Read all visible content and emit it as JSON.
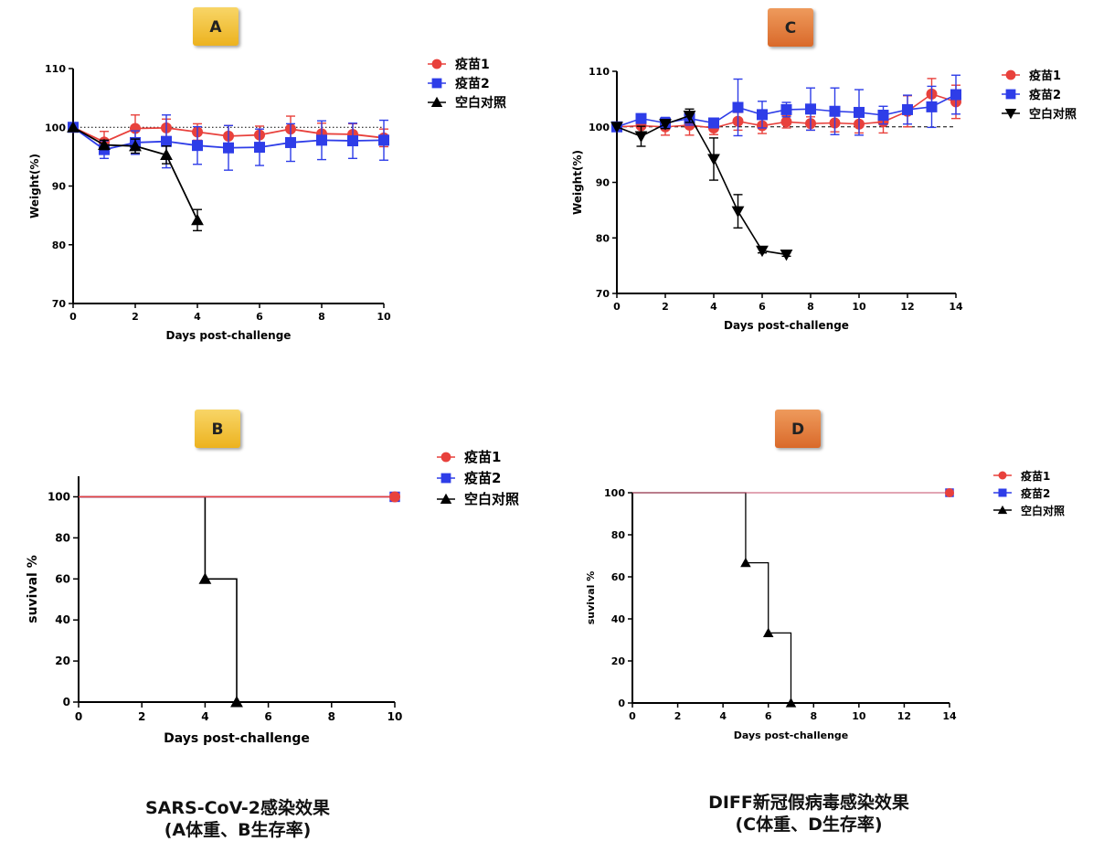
{
  "colors": {
    "vaccine1": "#e8413c",
    "vaccine2": "#2e3de8",
    "control": "#000000",
    "badge_yellow": "#f2c132",
    "badge_orange": "#e07a34"
  },
  "captions": {
    "left_line1": "SARS-CoV-2感染效果",
    "left_line2": "(A体重、B生存率)",
    "right_line1": "DIFF新冠假病毒感染效果",
    "right_line2": "(C体重、D生存率)"
  },
  "chart_data": [
    {
      "id": "A",
      "badge": "A",
      "type": "line",
      "xlabel": "Days post-challenge",
      "ylabel": "Weight(%)",
      "xlim": [
        0,
        10
      ],
      "ylim": [
        70,
        110
      ],
      "xticks": [
        0,
        2,
        4,
        6,
        8,
        10
      ],
      "yticks": [
        70,
        80,
        90,
        100,
        110
      ],
      "reference_line": 100,
      "reference_style": "dotted",
      "legend_position": "top-right",
      "series": [
        {
          "name": "疫苗1",
          "marker": "circle",
          "x": [
            0,
            1,
            2,
            3,
            4,
            5,
            6,
            7,
            8,
            9,
            10
          ],
          "y": [
            100,
            97.5,
            99.8,
            99.9,
            99.2,
            98.5,
            98.7,
            99.7,
            98.9,
            98.8,
            98.2
          ],
          "err": [
            0,
            1.8,
            2.3,
            1.5,
            1.4,
            1.8,
            1.5,
            2.2,
            1.8,
            1.8,
            1.5
          ]
        },
        {
          "name": "疫苗2",
          "marker": "square",
          "x": [
            0,
            1,
            2,
            3,
            4,
            5,
            6,
            7,
            8,
            9,
            10
          ],
          "y": [
            100,
            96.2,
            97.4,
            97.6,
            96.9,
            96.5,
            96.6,
            97.4,
            97.8,
            97.7,
            97.8
          ],
          "err": [
            0,
            1.5,
            2.0,
            4.5,
            3.2,
            3.8,
            3.1,
            3.2,
            3.3,
            3.0,
            3.4
          ]
        },
        {
          "name": "空白对照",
          "marker": "triangle-up",
          "x": [
            0,
            1,
            2,
            3,
            4
          ],
          "y": [
            100,
            97.0,
            96.8,
            95.3,
            84.2
          ],
          "err": [
            0,
            0.8,
            1.2,
            1.5,
            1.8
          ]
        }
      ]
    },
    {
      "id": "B",
      "badge": "B",
      "type": "step",
      "xlabel": "Days post-challenge",
      "ylabel": "suvival %",
      "xlim": [
        0,
        10
      ],
      "ylim": [
        0,
        110
      ],
      "xticks": [
        0,
        2,
        4,
        6,
        8,
        10
      ],
      "yticks": [
        0,
        20,
        40,
        60,
        80,
        100
      ],
      "legend_position": "top-right",
      "series": [
        {
          "name": "疫苗1",
          "marker": "circle",
          "x": [
            0,
            10
          ],
          "y": [
            100,
            100
          ],
          "marker_x": [
            10
          ],
          "marker_y": [
            100
          ]
        },
        {
          "name": "疫苗2",
          "marker": "square",
          "x": [
            0,
            10
          ],
          "y": [
            100,
            100
          ],
          "marker_x": [
            10
          ],
          "marker_y": [
            100
          ]
        },
        {
          "name": "空白对照",
          "marker": "triangle-up",
          "x": [
            0,
            4,
            5
          ],
          "y": [
            100,
            60,
            0
          ],
          "marker_x": [
            4,
            5
          ],
          "marker_y": [
            60,
            0
          ]
        }
      ]
    },
    {
      "id": "C",
      "badge": "C",
      "type": "line",
      "xlabel": "Days post-challenge",
      "ylabel": "Weight(%)",
      "xlim": [
        0,
        14
      ],
      "ylim": [
        70,
        110
      ],
      "xticks": [
        0,
        2,
        4,
        6,
        8,
        10,
        12,
        14
      ],
      "yticks": [
        70,
        80,
        90,
        100,
        110
      ],
      "reference_line": 100,
      "reference_style": "dashed",
      "legend_position": "top-right",
      "series": [
        {
          "name": "疫苗1",
          "marker": "circle",
          "x": [
            0,
            1,
            2,
            3,
            4,
            5,
            6,
            7,
            8,
            9,
            10,
            11,
            12,
            13,
            14
          ],
          "y": [
            100,
            100.2,
            100.0,
            100.3,
            99.8,
            101.0,
            100.2,
            100.9,
            100.6,
            100.7,
            100.5,
            100.9,
            102.8,
            105.9,
            104.5
          ],
          "err": [
            0,
            1.2,
            1.5,
            1.8,
            1.2,
            1.6,
            1.4,
            1.1,
            1.2,
            1.6,
            1.6,
            2.0,
            2.8,
            2.8,
            3.0
          ]
        },
        {
          "name": "疫苗2",
          "marker": "square",
          "x": [
            0,
            1,
            2,
            3,
            4,
            5,
            6,
            7,
            8,
            9,
            10,
            11,
            12,
            13,
            14
          ],
          "y": [
            100,
            101.5,
            100.7,
            101.5,
            100.7,
            103.5,
            102.2,
            103.1,
            103.2,
            102.8,
            102.6,
            102.1,
            103.1,
            103.6,
            105.8
          ],
          "err": [
            0,
            0.6,
            1.0,
            1.2,
            0.8,
            5.1,
            2.4,
            1.3,
            3.8,
            4.2,
            4.1,
            1.6,
            2.6,
            3.7,
            3.5
          ]
        },
        {
          "name": "空白对照",
          "marker": "triangle-down",
          "x": [
            0,
            1,
            2,
            3,
            4,
            5,
            6,
            7
          ],
          "y": [
            100,
            98.3,
            100.5,
            102.0,
            94.2,
            84.8,
            77.7,
            77.0
          ],
          "err": [
            0,
            1.8,
            0.8,
            1.2,
            3.8,
            3.0,
            0.4,
            0.3
          ]
        }
      ]
    },
    {
      "id": "D",
      "badge": "D",
      "type": "step",
      "xlabel": "Days post-challenge",
      "ylabel": "suvival %",
      "xlim": [
        0,
        14
      ],
      "ylim": [
        0,
        100
      ],
      "xticks": [
        0,
        2,
        4,
        6,
        8,
        10,
        12,
        14
      ],
      "yticks": [
        0,
        20,
        40,
        60,
        80,
        100
      ],
      "legend_position": "top-right",
      "series": [
        {
          "name": "疫苗1",
          "marker": "circle",
          "x": [
            0,
            14
          ],
          "y": [
            100,
            100
          ],
          "marker_x": [
            14
          ],
          "marker_y": [
            100
          ]
        },
        {
          "name": "疫苗2",
          "marker": "square",
          "x": [
            0,
            14
          ],
          "y": [
            100,
            100
          ],
          "marker_x": [
            14
          ],
          "marker_y": [
            100
          ]
        },
        {
          "name": "空白对照",
          "marker": "triangle-up",
          "x": [
            0,
            5,
            6,
            7
          ],
          "y": [
            100,
            66.7,
            33.3,
            0
          ],
          "marker_x": [
            5,
            6,
            7
          ],
          "marker_y": [
            66.7,
            33.3,
            0
          ]
        }
      ]
    }
  ]
}
